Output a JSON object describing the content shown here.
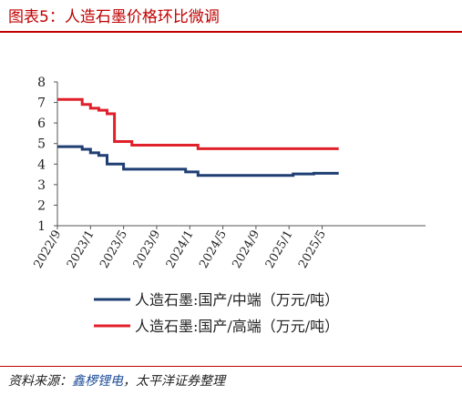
{
  "title": "图表5：人造石墨价格环比微调",
  "source": {
    "prefix": "资料来源：",
    "name": "鑫椤锂电",
    "suffix": "，太平洋证券整理"
  },
  "chart_data": {
    "type": "line",
    "ylim": [
      1,
      8
    ],
    "yticks": [
      "1",
      "2",
      "3",
      "4",
      "5",
      "6",
      "7",
      "8"
    ],
    "xlim": [
      0,
      44.5
    ],
    "xticks": [
      {
        "label": "2022/9",
        "x": 0
      },
      {
        "label": "2023/1",
        "x": 4
      },
      {
        "label": "2023/5",
        "x": 8
      },
      {
        "label": "2023/9",
        "x": 12
      },
      {
        "label": "2024/1",
        "x": 16
      },
      {
        "label": "2024/5",
        "x": 20
      },
      {
        "label": "2024/9",
        "x": 24
      },
      {
        "label": "2025/1",
        "x": 28
      },
      {
        "label": "2025/5",
        "x": 32
      }
    ],
    "legend_position": "bottom",
    "series": [
      {
        "name": "人造石墨:国产/中端（万元/吨）",
        "color": "#1f3f73",
        "points": [
          [
            0,
            4.85
          ],
          [
            3.0,
            4.85
          ],
          [
            3.0,
            4.72
          ],
          [
            4.0,
            4.72
          ],
          [
            4.0,
            4.55
          ],
          [
            5.0,
            4.55
          ],
          [
            5.0,
            4.42
          ],
          [
            6.0,
            4.42
          ],
          [
            6.0,
            4.0
          ],
          [
            8.0,
            4.0
          ],
          [
            8.0,
            3.75
          ],
          [
            15.5,
            3.75
          ],
          [
            15.5,
            3.62
          ],
          [
            17.0,
            3.62
          ],
          [
            17.0,
            3.45
          ],
          [
            28.5,
            3.45
          ],
          [
            28.5,
            3.52
          ],
          [
            31.0,
            3.52
          ],
          [
            31.0,
            3.55
          ],
          [
            34.0,
            3.55
          ]
        ]
      },
      {
        "name": "人造石墨:国产/高端（万元/吨）",
        "color": "#e0202a",
        "points": [
          [
            0,
            7.15
          ],
          [
            3.0,
            7.15
          ],
          [
            3.0,
            6.9
          ],
          [
            4.0,
            6.9
          ],
          [
            4.0,
            6.72
          ],
          [
            5.0,
            6.72
          ],
          [
            5.0,
            6.62
          ],
          [
            6.0,
            6.62
          ],
          [
            6.0,
            6.45
          ],
          [
            6.9,
            6.45
          ],
          [
            6.9,
            5.1
          ],
          [
            9.0,
            5.1
          ],
          [
            9.0,
            4.92
          ],
          [
            17.0,
            4.92
          ],
          [
            17.0,
            4.75
          ],
          [
            34.0,
            4.75
          ]
        ]
      }
    ]
  }
}
